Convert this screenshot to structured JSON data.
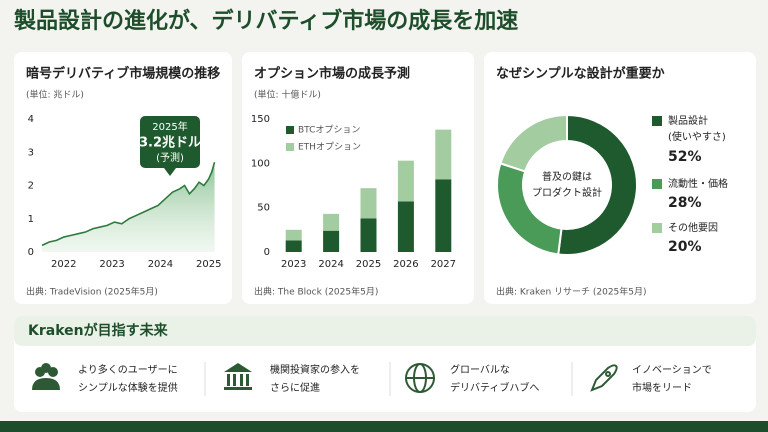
{
  "title": "製品設計の進化が、デリバティブ市場の成長を加速",
  "chart_data": [
    {
      "type": "line",
      "title": "暗号デリバティブ市場規模の推移",
      "subtitle": "(単位: 兆ドル)",
      "x": [
        2021.55,
        2021.7,
        2021.85,
        2022.0,
        2022.15,
        2022.3,
        2022.45,
        2022.6,
        2022.75,
        2022.9,
        2023.05,
        2023.2,
        2023.35,
        2023.5,
        2023.65,
        2023.8,
        2023.95,
        2024.1,
        2024.25,
        2024.4,
        2024.5,
        2024.6,
        2024.7,
        2024.8,
        2024.9,
        2025.0,
        2025.06,
        2025.12
      ],
      "values": [
        0.2,
        0.3,
        0.35,
        0.45,
        0.5,
        0.55,
        0.6,
        0.7,
        0.75,
        0.8,
        0.9,
        0.85,
        1.0,
        1.1,
        1.2,
        1.3,
        1.4,
        1.6,
        1.8,
        1.9,
        2.0,
        1.75,
        1.9,
        2.1,
        2.0,
        2.2,
        2.4,
        2.7
      ],
      "color": "#2f7a3d",
      "xlim": [
        2021.55,
        2025.15
      ],
      "xticks": [
        2022,
        2023,
        2024,
        2025
      ],
      "ylim": [
        0,
        4
      ],
      "yticks": [
        0,
        1,
        2,
        3,
        4
      ],
      "annotation": [
        "2025年",
        "3.2兆ドル",
        "(予測)"
      ],
      "source": "出典: TradeVision (2025年5月)"
    },
    {
      "type": "bar",
      "title": "オプション市場の成長予測",
      "subtitle": "(単位: 十億ドル)",
      "stacked": true,
      "categories": [
        "2023",
        "2024",
        "2025",
        "2026",
        "2027"
      ],
      "series": [
        {
          "name": "BTCオプション",
          "color": "#1f5a2e",
          "values": [
            13,
            24,
            38,
            57,
            82
          ]
        },
        {
          "name": "ETHオプション",
          "color": "#a3cca0",
          "values": [
            12,
            19,
            34,
            46,
            56
          ]
        }
      ],
      "ylim": [
        0,
        150
      ],
      "yticks": [
        0,
        50,
        100,
        150
      ],
      "source": "出典: The Block (2025年5月)"
    },
    {
      "type": "pie",
      "title": "なぜシンプルな設計が重要か",
      "categories": [
        "製品設計",
        "流動性・価格",
        "その他要因"
      ],
      "note": "(使いやすさ)",
      "values": [
        52,
        28,
        20
      ],
      "value_labels": [
        "52%",
        "28%",
        "20%"
      ],
      "colors": [
        "#1f5a2e",
        "#4a9a58",
        "#a3cca0"
      ],
      "center_label": [
        "普及の鍵は",
        "プロダクト設計"
      ],
      "source": "出典: Kraken リサーチ (2025年5月)"
    }
  ],
  "vision": {
    "title": "Krakenが目指す未来",
    "items": [
      [
        "より多くのユーザーに",
        "シンプルな体験を提供"
      ],
      [
        "機関投資家の参入を",
        "さらに促進"
      ],
      [
        "グローバルな",
        "デリバティブハブへ"
      ],
      [
        "イノベーションで",
        "市場をリード"
      ]
    ]
  }
}
